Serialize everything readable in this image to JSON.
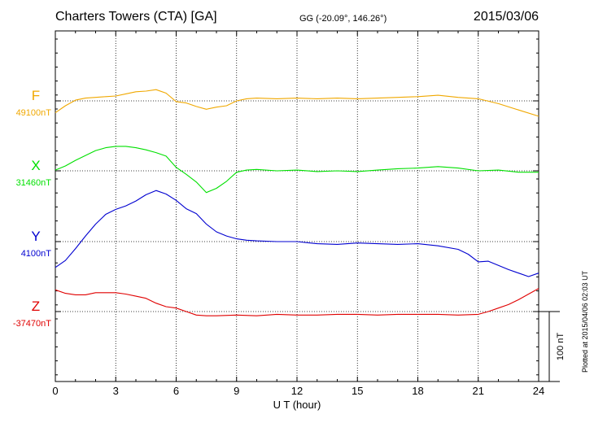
{
  "header": {
    "station": "Charters Towers (CTA)  [GA]",
    "coords": "GG (-20.09°, 146.26°)",
    "date": "2015/03/06"
  },
  "plotted_note": "Plotted at 2015/04/06 02:03 UT",
  "scale_label": "100 nT",
  "chart_data": {
    "type": "line",
    "xlabel": "U T (hour)",
    "xlim": [
      0,
      24
    ],
    "xticks": [
      "0",
      "3",
      "6",
      "9",
      "12",
      "15",
      "18",
      "21",
      "24"
    ],
    "grid": true,
    "scale_nT": 100,
    "series": [
      {
        "name": "F",
        "baseline_label": "49100nT",
        "baseline": 49100,
        "color": "#f0a800",
        "x": [
          0,
          0.5,
          1,
          1.5,
          2,
          2.5,
          3,
          3.5,
          4,
          4.5,
          5,
          5.5,
          6,
          6.5,
          7,
          7.5,
          8,
          8.5,
          9,
          9.5,
          10,
          11,
          12,
          13,
          14,
          15,
          16,
          17,
          18,
          19,
          20,
          21,
          22,
          23,
          24
        ],
        "y": [
          49083,
          49093,
          49101,
          49104,
          49105,
          49106,
          49107,
          49110,
          49113,
          49114,
          49116,
          49111,
          49099,
          49097,
          49092,
          49088,
          49091,
          49093,
          49100,
          49103,
          49104,
          49103,
          49104,
          49103,
          49104,
          49103,
          49104,
          49105,
          49106,
          49108,
          49105,
          49103,
          49096,
          49087,
          49078
        ]
      },
      {
        "name": "X",
        "baseline_label": "31460nT",
        "baseline": 31460,
        "color": "#00e000",
        "x": [
          0,
          0.5,
          1,
          1.5,
          2,
          2.5,
          3,
          3.5,
          4,
          4.5,
          5,
          5.5,
          6,
          6.5,
          7,
          7.5,
          8,
          8.5,
          9,
          9.5,
          10,
          11,
          12,
          13,
          14,
          15,
          16,
          17,
          18,
          19,
          20,
          21,
          22,
          23,
          24
        ],
        "y": [
          31461,
          31467,
          31475,
          31482,
          31489,
          31493,
          31495,
          31495,
          31493,
          31490,
          31486,
          31481,
          31465,
          31455,
          31444,
          31429,
          31435,
          31445,
          31458,
          31461,
          31462,
          31460,
          31461,
          31459,
          31460,
          31459,
          31461,
          31463,
          31464,
          31466,
          31464,
          31460,
          31461,
          31458,
          31458
        ]
      },
      {
        "name": "Y",
        "baseline_label": "4100nT",
        "baseline": 4100,
        "color": "#0000d0",
        "x": [
          0,
          0.5,
          1,
          1.5,
          2,
          2.5,
          3,
          3.5,
          4,
          4.5,
          5,
          5.5,
          6,
          6.5,
          7,
          7.5,
          8,
          8.5,
          9,
          9.5,
          10,
          11,
          12,
          13,
          14,
          15,
          16,
          17,
          18,
          19,
          20,
          20.5,
          21,
          21.5,
          22,
          22.5,
          23,
          23.5,
          24
        ],
        "y": [
          4063,
          4073,
          4090,
          4108,
          4125,
          4139,
          4146,
          4151,
          4158,
          4167,
          4173,
          4168,
          4159,
          4147,
          4140,
          4125,
          4114,
          4108,
          4104,
          4102,
          4101,
          4100,
          4100,
          4097,
          4096,
          4098,
          4097,
          4096,
          4097,
          4094,
          4089,
          4082,
          4071,
          4072,
          4066,
          4060,
          4055,
          4050,
          4055
        ]
      },
      {
        "name": "Z",
        "baseline_label": "-37470nT",
        "baseline": -37470,
        "color": "#e00000",
        "x": [
          0,
          0.5,
          1,
          1.5,
          2,
          2.5,
          3,
          3.5,
          4,
          4.5,
          5,
          5.5,
          6,
          6.5,
          7,
          7.5,
          8,
          9,
          10,
          11,
          12,
          13,
          14,
          15,
          16,
          17,
          18,
          19,
          20,
          21,
          21.5,
          22,
          22.5,
          23,
          23.5,
          24
        ],
        "y": [
          -37439,
          -37444,
          -37446,
          -37446,
          -37443,
          -37443,
          -37443,
          -37445,
          -37448,
          -37451,
          -37458,
          -37463,
          -37465,
          -37470,
          -37475,
          -37476,
          -37476,
          -37475,
          -37476,
          -37474,
          -37475,
          -37475,
          -37474,
          -37474,
          -37475,
          -37474,
          -37474,
          -37474,
          -37475,
          -37474,
          -37470,
          -37465,
          -37460,
          -37453,
          -37445,
          -37437
        ]
      }
    ]
  }
}
